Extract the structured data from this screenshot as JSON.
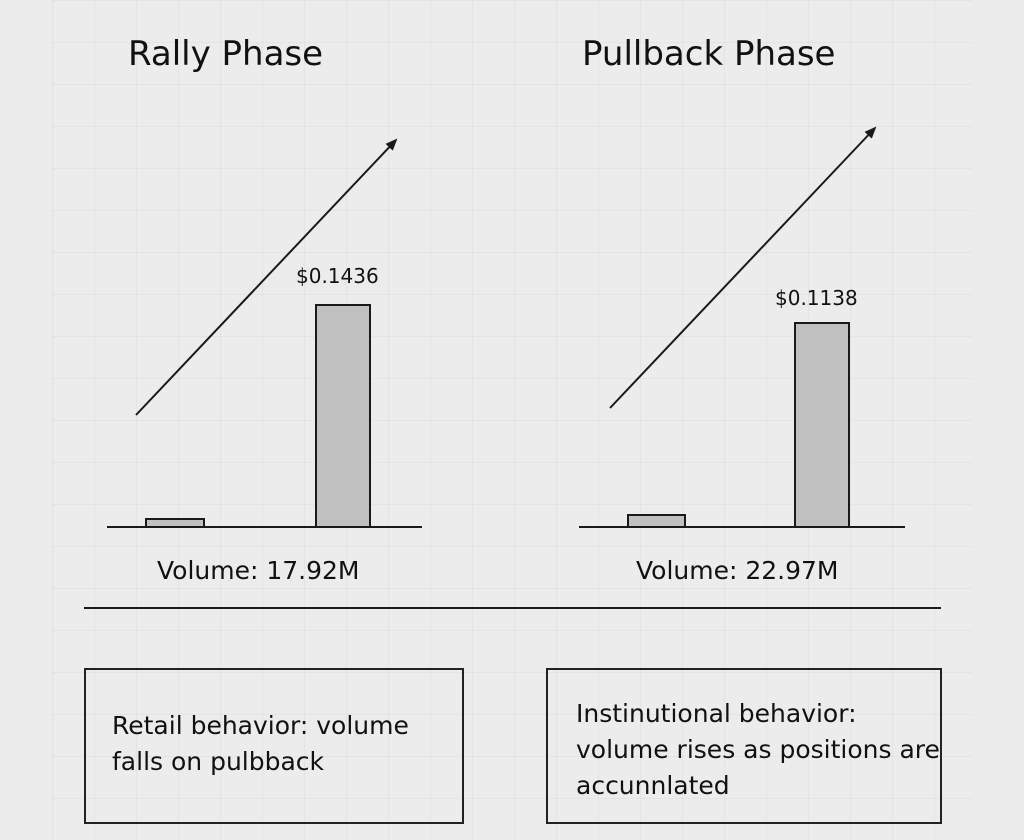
{
  "phases": [
    {
      "title": "Rally Phase",
      "price_label": "$0.1436",
      "volume_label": "Volume: 17.92M"
    },
    {
      "title": "Pullback Phase",
      "price_label": "$0.1138",
      "volume_label": "Volume: 22.97M"
    }
  ],
  "notes": {
    "retail": "Retail behavior: volume falls on pulbback",
    "institutional": "Instinutional behavior: volume rises as positions are accunnlated"
  },
  "colors": {
    "background": "#ececec",
    "bar_fill": "#c0c0c0",
    "stroke": "#1a1a1a"
  }
}
